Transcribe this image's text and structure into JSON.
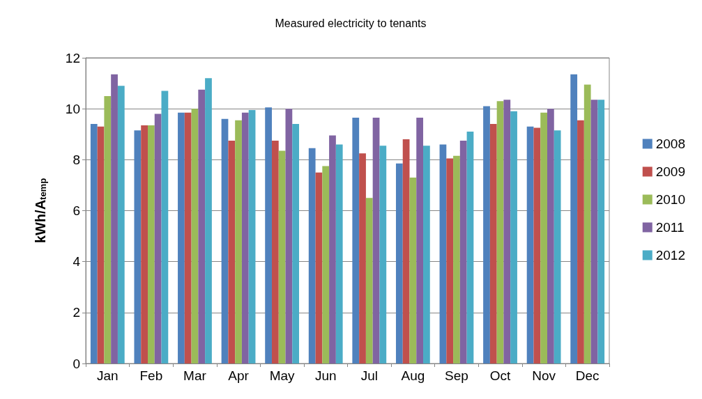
{
  "chart_data": {
    "type": "bar",
    "title": "Measured electricity to tenants",
    "ylabel": "kWh/A$_{temp}$",
    "categories": [
      "Jan",
      "Feb",
      "Mar",
      "Apr",
      "May",
      "Jun",
      "Jul",
      "Aug",
      "Sep",
      "Oct",
      "Nov",
      "Dec"
    ],
    "series": [
      {
        "name": "2008",
        "color": "#4f81bd",
        "values": [
          9.4,
          9.15,
          9.85,
          9.6,
          10.05,
          8.45,
          9.65,
          7.85,
          8.6,
          10.1,
          9.3,
          11.35
        ]
      },
      {
        "name": "2009",
        "color": "#c0504d",
        "values": [
          9.3,
          9.35,
          9.85,
          8.75,
          8.75,
          7.5,
          8.25,
          8.8,
          8.05,
          9.4,
          9.25,
          9.55
        ]
      },
      {
        "name": "2010",
        "color": "#9bbb59",
        "values": [
          10.5,
          9.35,
          10.0,
          9.55,
          8.35,
          7.75,
          6.5,
          7.3,
          8.15,
          10.3,
          9.85,
          10.95
        ]
      },
      {
        "name": "2011",
        "color": "#8064a2",
        "values": [
          11.35,
          9.8,
          10.75,
          9.85,
          10.0,
          8.95,
          9.65,
          9.65,
          8.75,
          10.35,
          10.0,
          10.35
        ]
      },
      {
        "name": "2012",
        "color": "#4bacc6",
        "values": [
          10.9,
          10.7,
          11.2,
          9.95,
          9.4,
          8.6,
          8.55,
          8.55,
          9.1,
          9.9,
          9.15,
          10.35
        ]
      }
    ],
    "ylim": [
      0,
      12
    ],
    "yticks": [
      0,
      2,
      4,
      6,
      8,
      10,
      12
    ],
    "grid": "y",
    "legend": "right"
  }
}
